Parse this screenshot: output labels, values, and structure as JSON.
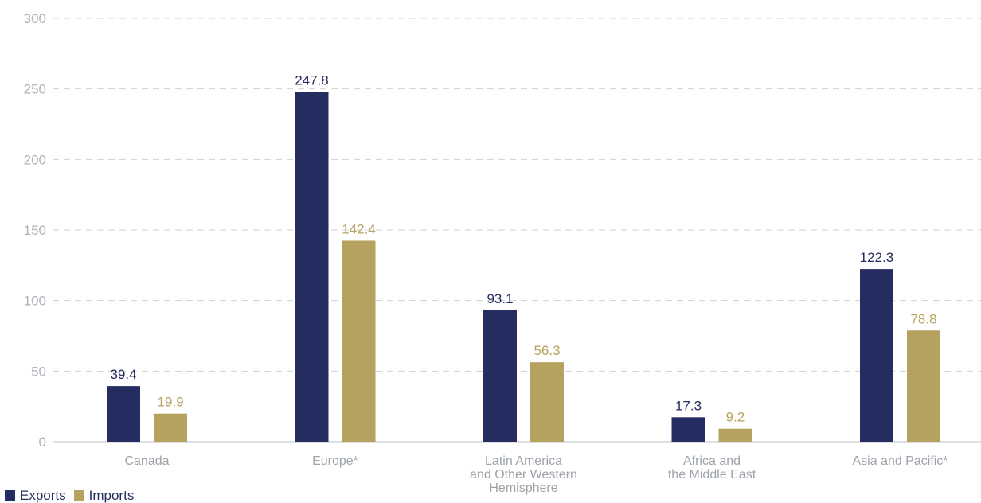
{
  "chart_data": {
    "type": "bar",
    "categories": [
      [
        "Canada"
      ],
      [
        "Europe*"
      ],
      [
        "Latin America",
        "and Other Western",
        "Hemisphere"
      ],
      [
        "Africa and",
        "the Middle East"
      ],
      [
        "Asia and Pacific*"
      ]
    ],
    "series": [
      {
        "name": "Exports",
        "values": [
          39.4,
          247.8,
          93.1,
          17.3,
          122.3
        ],
        "labels": [
          "39.4",
          "247.8",
          "93.1",
          "17.3",
          "122.3"
        ],
        "color": "#252c60"
      },
      {
        "name": "Imports",
        "values": [
          19.9,
          142.4,
          56.3,
          9.2,
          78.8
        ],
        "labels": [
          "19.9",
          "142.4",
          "56.3",
          "9.2",
          "78.8"
        ],
        "color": "#b5a25e"
      }
    ],
    "yticks": [
      "0",
      "50",
      "100",
      "150",
      "200",
      "250",
      "300"
    ],
    "ylim": [
      0,
      300
    ],
    "grid": true,
    "legend_position": "bottom-left"
  },
  "legend": {
    "exports_label": "Exports",
    "imports_label": "Imports"
  },
  "colors": {
    "exports": "#252c60",
    "imports": "#b5a25e",
    "grid": "#cfd2d6",
    "axis_text": "#aeb3ba"
  }
}
